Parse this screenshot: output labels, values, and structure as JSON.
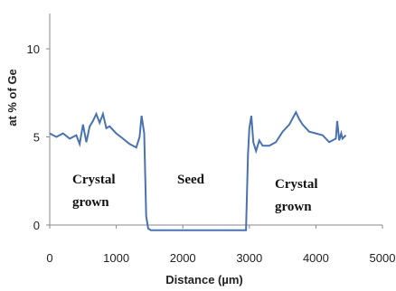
{
  "chart_data": {
    "type": "line",
    "title": "",
    "xlabel": "Distance (µm)",
    "ylabel": "at % of Ge",
    "xlim": [
      0,
      5000
    ],
    "ylim": [
      0,
      12
    ],
    "x_ticks": [
      "0",
      "1000",
      "2000",
      "3000",
      "4000",
      "5000"
    ],
    "y_ticks": [
      "0",
      "5",
      "10"
    ],
    "grid": false,
    "legend": "none",
    "color": "#4a72b0",
    "annotations": [
      {
        "line1": "Crystal",
        "line2": "grown"
      },
      {
        "line1": "Seed",
        "line2": ""
      },
      {
        "line1": "Crystal",
        "line2": "grown"
      }
    ],
    "series": [
      {
        "x": [
          0,
          100,
          200,
          300,
          400,
          450,
          500,
          550,
          600,
          650,
          700,
          750,
          800,
          850,
          900,
          1000,
          1100,
          1200,
          1300,
          1350,
          1380,
          1420,
          1450,
          1480,
          1520,
          1600,
          2000,
          2500,
          2800,
          2950,
          2980,
          3000,
          3030,
          3060,
          3100,
          3150,
          3200,
          3300,
          3400,
          3500,
          3600,
          3700,
          3750,
          3800,
          3900,
          4000,
          4100,
          4200,
          4300,
          4320,
          4350,
          4380,
          4400,
          4450
        ],
        "y": [
          5.2,
          5.0,
          5.2,
          4.9,
          5.1,
          4.6,
          5.7,
          4.7,
          5.6,
          5.9,
          6.3,
          5.8,
          6.3,
          5.5,
          5.6,
          5.2,
          4.9,
          4.6,
          4.4,
          5.0,
          6.2,
          5.2,
          0.5,
          -0.2,
          -0.3,
          -0.3,
          -0.3,
          -0.3,
          -0.3,
          -0.3,
          4.0,
          5.5,
          6.2,
          4.7,
          4.2,
          4.8,
          4.5,
          4.5,
          4.7,
          5.3,
          5.7,
          6.4,
          6.0,
          5.7,
          5.3,
          5.2,
          5.1,
          4.7,
          4.9,
          5.9,
          4.8,
          5.2,
          4.9,
          5.1
        ]
      }
    ]
  }
}
